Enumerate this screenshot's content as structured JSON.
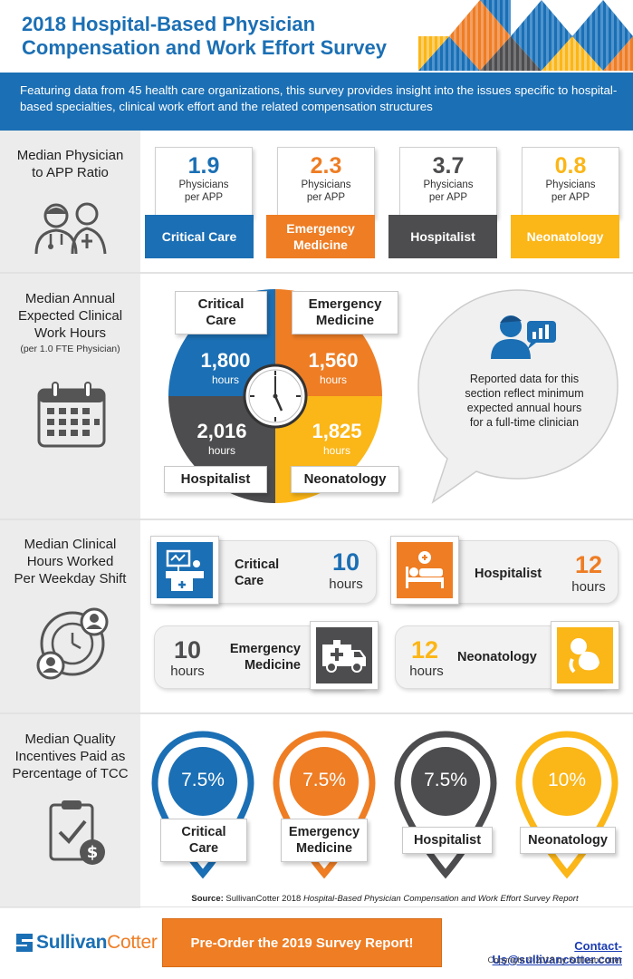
{
  "header": {
    "title_line1": "2018 Hospital-Based Physician",
    "title_line2": "Compensation and Work Effort Survey"
  },
  "intro": "Featuring data from 45 health care organizations, this survey provides insight into the issues specific to hospital-based specialties, clinical work effort and the related compensation structures",
  "colors": {
    "blue": "#1b6fb4",
    "orange": "#ee7d24",
    "gray": "#4d4d4f",
    "yellow": "#fbb617"
  },
  "ratio": {
    "label_line1": "Median Physician",
    "label_line2": "to APP Ratio",
    "cards": [
      {
        "value": "1.9",
        "text_line1": "Physicians",
        "text_line2": "per APP",
        "name_line1": "Critical Care",
        "name_line2": ""
      },
      {
        "value": "2.3",
        "text_line1": "Physicians",
        "text_line2": "per APP",
        "name_line1": "Emergency",
        "name_line2": "Medicine"
      },
      {
        "value": "3.7",
        "text_line1": "Physicians",
        "text_line2": "per APP",
        "name_line1": "Hospitalist",
        "name_line2": ""
      },
      {
        "value": "0.8",
        "text_line1": "Physicians",
        "text_line2": "per APP",
        "name_line1": "Neonatology",
        "name_line2": ""
      }
    ]
  },
  "hours": {
    "label_lines": [
      "Median Annual",
      "Expected Clinical",
      "Work Hours"
    ],
    "sub": "(per 1.0 FTE Physician)",
    "quadrants": [
      {
        "name_line1": "Critical",
        "name_line2": "Care",
        "value": "1,800",
        "unit": "hours"
      },
      {
        "name_line1": "Emergency",
        "name_line2": "Medicine",
        "value": "1,560",
        "unit": "hours"
      },
      {
        "name_line1": "Hospitalist",
        "name_line2": "",
        "value": "2,016",
        "unit": "hours"
      },
      {
        "name_line1": "Neonatology",
        "name_line2": "",
        "value": "1,825",
        "unit": "hours"
      }
    ],
    "note_lines": [
      "Reported data for this",
      "section reflect minimum",
      "expected annual hours",
      "for a full-time clinician"
    ]
  },
  "shift": {
    "label_lines": [
      "Median Clinical",
      "Hours Worked",
      "Per Weekday Shift"
    ],
    "items": [
      {
        "name_line1": "Critical",
        "name_line2": "Care",
        "value": "10",
        "unit": "hours"
      },
      {
        "name_line1": "Hospitalist",
        "name_line2": "",
        "value": "12",
        "unit": "hours"
      },
      {
        "name_line1": "Emergency",
        "name_line2": "Medicine",
        "value": "10",
        "unit": "hours"
      },
      {
        "name_line1": "Neonatology",
        "name_line2": "",
        "value": "12",
        "unit": "hours"
      }
    ]
  },
  "quality": {
    "label_lines": [
      "Median Quality",
      "Incentives Paid as",
      "Percentage of TCC"
    ],
    "pins": [
      {
        "value": "7.5%",
        "name_line1": "Critical",
        "name_line2": "Care"
      },
      {
        "value": "7.5%",
        "name_line1": "Emergency",
        "name_line2": "Medicine"
      },
      {
        "value": "7.5%",
        "name_line1": "Hospitalist",
        "name_line2": ""
      },
      {
        "value": "10%",
        "name_line1": "Neonatology",
        "name_line2": ""
      }
    ]
  },
  "source": {
    "label": "Source:",
    "text": " SullivanCotter 2018 ",
    "italic": "Hospital-Based Physician Compensation and Work Effort Survey Report"
  },
  "footer": {
    "logo_part1": "Sullivan",
    "logo_part2": "Cotter",
    "cta": "Pre-Order the 2019 Survey Report!",
    "contact": "Contact-Us@sullivancotter.com",
    "copyright": "Copyright © 2018 by SullivanCotter"
  }
}
